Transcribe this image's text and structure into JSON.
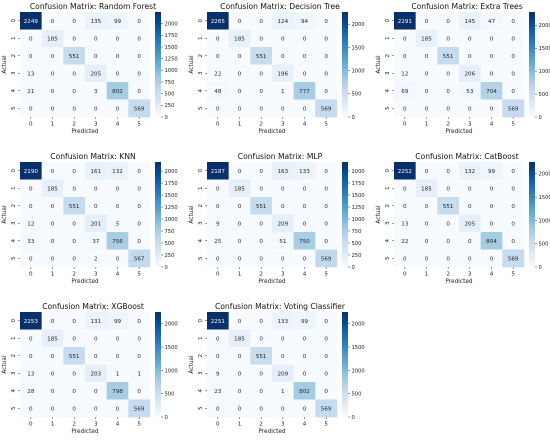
{
  "colorscale": {
    "low": "#f7fbff",
    "high": "#08306b",
    "dark_text": "#262626",
    "light_text": "#ffffff"
  },
  "chart_data": [
    {
      "type": "heatmap",
      "title": "Confusion Matrix: Random Forest",
      "xlabel": "Predicted",
      "ylabel": "Actual",
      "x_categories": [
        "0",
        "1",
        "2",
        "3",
        "4",
        "5"
      ],
      "y_categories": [
        "0",
        "1",
        "2",
        "3",
        "4",
        "5"
      ],
      "values": [
        [
          2249,
          0,
          0,
          135,
          99,
          0
        ],
        [
          0,
          185,
          0,
          0,
          0,
          0
        ],
        [
          0,
          0,
          551,
          0,
          0,
          0
        ],
        [
          13,
          0,
          0,
          205,
          0,
          0
        ],
        [
          21,
          0,
          0,
          3,
          802,
          0
        ],
        [
          0,
          0,
          0,
          0,
          0,
          569
        ]
      ],
      "colorbar_ticks": [
        0,
        250,
        500,
        750,
        1000,
        1250,
        1500,
        1750,
        2000
      ],
      "vmax": 2249
    },
    {
      "type": "heatmap",
      "title": "Confusion Matrix: Decision Tree",
      "xlabel": "Predicted",
      "ylabel": "Actual",
      "x_categories": [
        "0",
        "1",
        "2",
        "3",
        "4",
        "5"
      ],
      "y_categories": [
        "0",
        "1",
        "2",
        "3",
        "4",
        "5"
      ],
      "values": [
        [
          2265,
          0,
          0,
          124,
          94,
          0
        ],
        [
          0,
          185,
          0,
          0,
          0,
          0
        ],
        [
          0,
          0,
          551,
          0,
          0,
          0
        ],
        [
          22,
          0,
          0,
          196,
          0,
          0
        ],
        [
          48,
          0,
          0,
          1,
          777,
          0
        ],
        [
          0,
          0,
          0,
          0,
          0,
          569
        ]
      ],
      "colorbar_ticks": [
        0,
        500,
        1000,
        1500,
        2000
      ],
      "vmax": 2265
    },
    {
      "type": "heatmap",
      "title": "Confusion Matrix: Extra Trees",
      "xlabel": "Predicted",
      "ylabel": "Actual",
      "x_categories": [
        "0",
        "1",
        "2",
        "3",
        "4",
        "5"
      ],
      "y_categories": [
        "0",
        "1",
        "2",
        "3",
        "4",
        "5"
      ],
      "values": [
        [
          2291,
          0,
          0,
          145,
          47,
          0
        ],
        [
          0,
          185,
          0,
          0,
          0,
          0
        ],
        [
          0,
          0,
          551,
          0,
          0,
          0
        ],
        [
          12,
          0,
          0,
          206,
          0,
          0
        ],
        [
          69,
          0,
          0,
          53,
          704,
          0
        ],
        [
          0,
          0,
          0,
          0,
          0,
          569
        ]
      ],
      "colorbar_ticks": [
        0,
        500,
        1000,
        1500,
        2000
      ],
      "vmax": 2291
    },
    {
      "type": "heatmap",
      "title": "Confusion Matrix: KNN",
      "xlabel": "Predicted",
      "ylabel": "Actual",
      "x_categories": [
        "0",
        "1",
        "2",
        "3",
        "4",
        "5"
      ],
      "y_categories": [
        "0",
        "1",
        "2",
        "3",
        "4",
        "5"
      ],
      "values": [
        [
          2190,
          0,
          0,
          161,
          132,
          0
        ],
        [
          0,
          185,
          0,
          0,
          0,
          0
        ],
        [
          0,
          0,
          551,
          0,
          0,
          0
        ],
        [
          12,
          0,
          0,
          201,
          5,
          0
        ],
        [
          33,
          0,
          0,
          37,
          756,
          0
        ],
        [
          0,
          0,
          0,
          2,
          0,
          567
        ]
      ],
      "colorbar_ticks": [
        0,
        250,
        500,
        750,
        1000,
        1250,
        1500,
        1750,
        2000
      ],
      "vmax": 2190
    },
    {
      "type": "heatmap",
      "title": "Confusion Matrix: MLP",
      "xlabel": "Predicted",
      "ylabel": "Actual",
      "x_categories": [
        "0",
        "1",
        "2",
        "3",
        "4",
        "5"
      ],
      "y_categories": [
        "0",
        "1",
        "2",
        "3",
        "4",
        "5"
      ],
      "values": [
        [
          2187,
          0,
          0,
          163,
          133,
          0
        ],
        [
          0,
          185,
          0,
          0,
          0,
          0
        ],
        [
          0,
          0,
          551,
          0,
          0,
          0
        ],
        [
          9,
          0,
          0,
          209,
          0,
          0
        ],
        [
          25,
          0,
          0,
          51,
          750,
          0
        ],
        [
          0,
          0,
          0,
          0,
          0,
          569
        ]
      ],
      "colorbar_ticks": [
        0,
        250,
        500,
        750,
        1000,
        1250,
        1500,
        1750,
        2000
      ],
      "vmax": 2187
    },
    {
      "type": "heatmap",
      "title": "Confusion Matrix: CatBoost",
      "xlabel": "Predicted",
      "ylabel": "Actual",
      "x_categories": [
        "0",
        "1",
        "2",
        "3",
        "4",
        "5"
      ],
      "y_categories": [
        "0",
        "1",
        "2",
        "3",
        "4",
        "5"
      ],
      "values": [
        [
          2252,
          0,
          0,
          132,
          99,
          0
        ],
        [
          0,
          185,
          0,
          0,
          0,
          0
        ],
        [
          0,
          0,
          551,
          0,
          0,
          0
        ],
        [
          13,
          0,
          0,
          205,
          0,
          0
        ],
        [
          22,
          0,
          0,
          0,
          804,
          0
        ],
        [
          0,
          0,
          0,
          0,
          0,
          569
        ]
      ],
      "colorbar_ticks": [
        0,
        500,
        1000,
        1500,
        2000
      ],
      "vmax": 2252
    },
    {
      "type": "heatmap",
      "title": "Confusion Matrix: XGBoost",
      "xlabel": "Predicted",
      "ylabel": "Actual",
      "x_categories": [
        "0",
        "1",
        "2",
        "3",
        "4",
        "5"
      ],
      "y_categories": [
        "0",
        "1",
        "2",
        "3",
        "4",
        "5"
      ],
      "values": [
        [
          2253,
          0,
          0,
          131,
          99,
          0
        ],
        [
          0,
          185,
          0,
          0,
          0,
          0
        ],
        [
          0,
          0,
          551,
          0,
          0,
          0
        ],
        [
          13,
          0,
          0,
          203,
          1,
          1
        ],
        [
          28,
          0,
          0,
          0,
          798,
          0
        ],
        [
          0,
          0,
          0,
          0,
          0,
          569
        ]
      ],
      "colorbar_ticks": [
        0,
        500,
        1000,
        1500,
        2000
      ],
      "vmax": 2253
    },
    {
      "type": "heatmap",
      "title": "Confusion Matrix: Voting Classifier",
      "xlabel": "Predicted",
      "ylabel": "Actual",
      "x_categories": [
        "0",
        "1",
        "2",
        "3",
        "4",
        "5"
      ],
      "y_categories": [
        "0",
        "1",
        "2",
        "3",
        "4",
        "5"
      ],
      "values": [
        [
          2251,
          0,
          0,
          133,
          99,
          0
        ],
        [
          0,
          185,
          0,
          0,
          0,
          0
        ],
        [
          0,
          0,
          551,
          0,
          0,
          0
        ],
        [
          9,
          0,
          0,
          209,
          0,
          0
        ],
        [
          23,
          0,
          0,
          1,
          802,
          0
        ],
        [
          0,
          0,
          0,
          0,
          0,
          569
        ]
      ],
      "colorbar_ticks": [
        0,
        500,
        1000,
        1500,
        2000
      ],
      "vmax": 2251
    }
  ]
}
